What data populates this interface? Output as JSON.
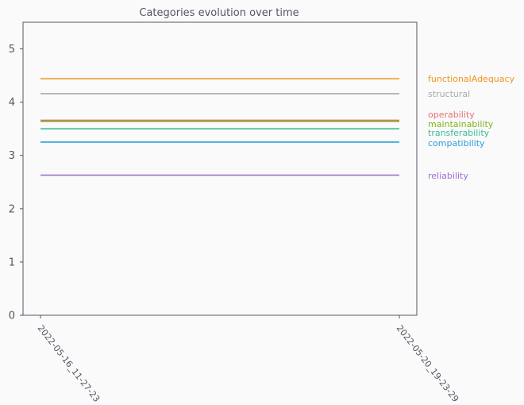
{
  "chart_data": {
    "type": "line",
    "title": "Categories evolution over time",
    "xlabel": "",
    "ylabel": "",
    "x": [
      "2022-05-16_11-27-23",
      "2022-05-20_19-23-29"
    ],
    "ylim": [
      0,
      5.5
    ],
    "yticks": [
      "0",
      "1",
      "2",
      "3",
      "4",
      "5"
    ],
    "grid": false,
    "legend": "right, labels at line ends",
    "series": [
      {
        "name": "functionalAdequacy",
        "values": [
          4.44,
          4.44
        ],
        "color": "#f0941d"
      },
      {
        "name": "structural",
        "values": [
          4.16,
          4.16
        ],
        "color": "#aaaaaa"
      },
      {
        "name": "operability",
        "values": [
          3.66,
          3.66
        ],
        "color": "#e8707a"
      },
      {
        "name": "maintainability",
        "values": [
          3.64,
          3.64
        ],
        "color": "#7fb21a"
      },
      {
        "name": "transferability",
        "values": [
          3.5,
          3.5
        ],
        "color": "#3dbb95"
      },
      {
        "name": "compatibility",
        "values": [
          3.25,
          3.25
        ],
        "color": "#2a9fd8"
      },
      {
        "name": "reliability",
        "values": [
          2.63,
          2.63
        ],
        "color": "#9b6fd0"
      }
    ]
  }
}
